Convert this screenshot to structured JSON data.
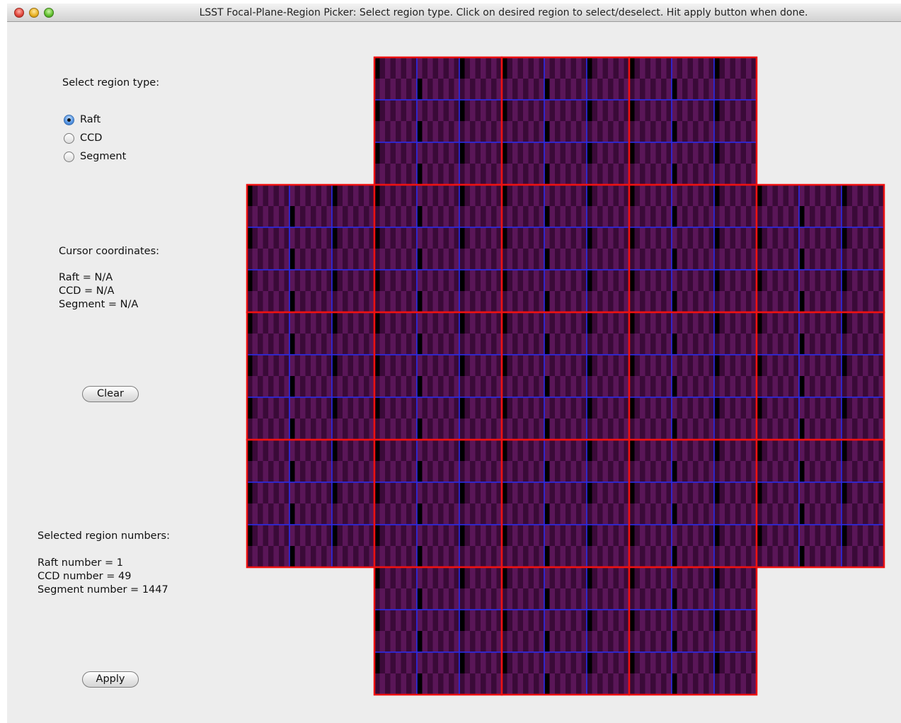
{
  "window": {
    "title": "LSST Focal-Plane-Region Picker: Select region type. Click on desired region to select/deselect.  Hit apply button when done."
  },
  "region_type": {
    "heading": "Select region type:",
    "options": [
      {
        "label": "Raft",
        "selected": true
      },
      {
        "label": "CCD",
        "selected": false
      },
      {
        "label": "Segment",
        "selected": false
      }
    ]
  },
  "cursor": {
    "heading": "Cursor coordinates:",
    "raft_text": "Raft = N/A",
    "ccd_text": "CCD = N/A",
    "segment_text": "Segment =  N/A"
  },
  "buttons": {
    "clear_label": "Clear",
    "apply_label": "Apply"
  },
  "selected": {
    "heading": "Selected region numbers:",
    "raft_text": "Raft number = 1",
    "ccd_text": "CCD number = 49",
    "segment_text": "Segment number = 1447"
  },
  "focal_plane": {
    "raft_grid": {
      "rows": 5,
      "cols": 5
    },
    "omit_corner_rafts": true,
    "ccds_per_raft": {
      "rows": 3,
      "cols": 3
    },
    "segments_per_ccd": {
      "rows": 2,
      "cols": 8
    },
    "colors": {
      "raft_border": "#ee1111",
      "ccd_border": "#2a2ae6",
      "segment_light": "#5a1658",
      "segment_dark": "#3a0a38",
      "segment_gap": "#000000"
    }
  }
}
